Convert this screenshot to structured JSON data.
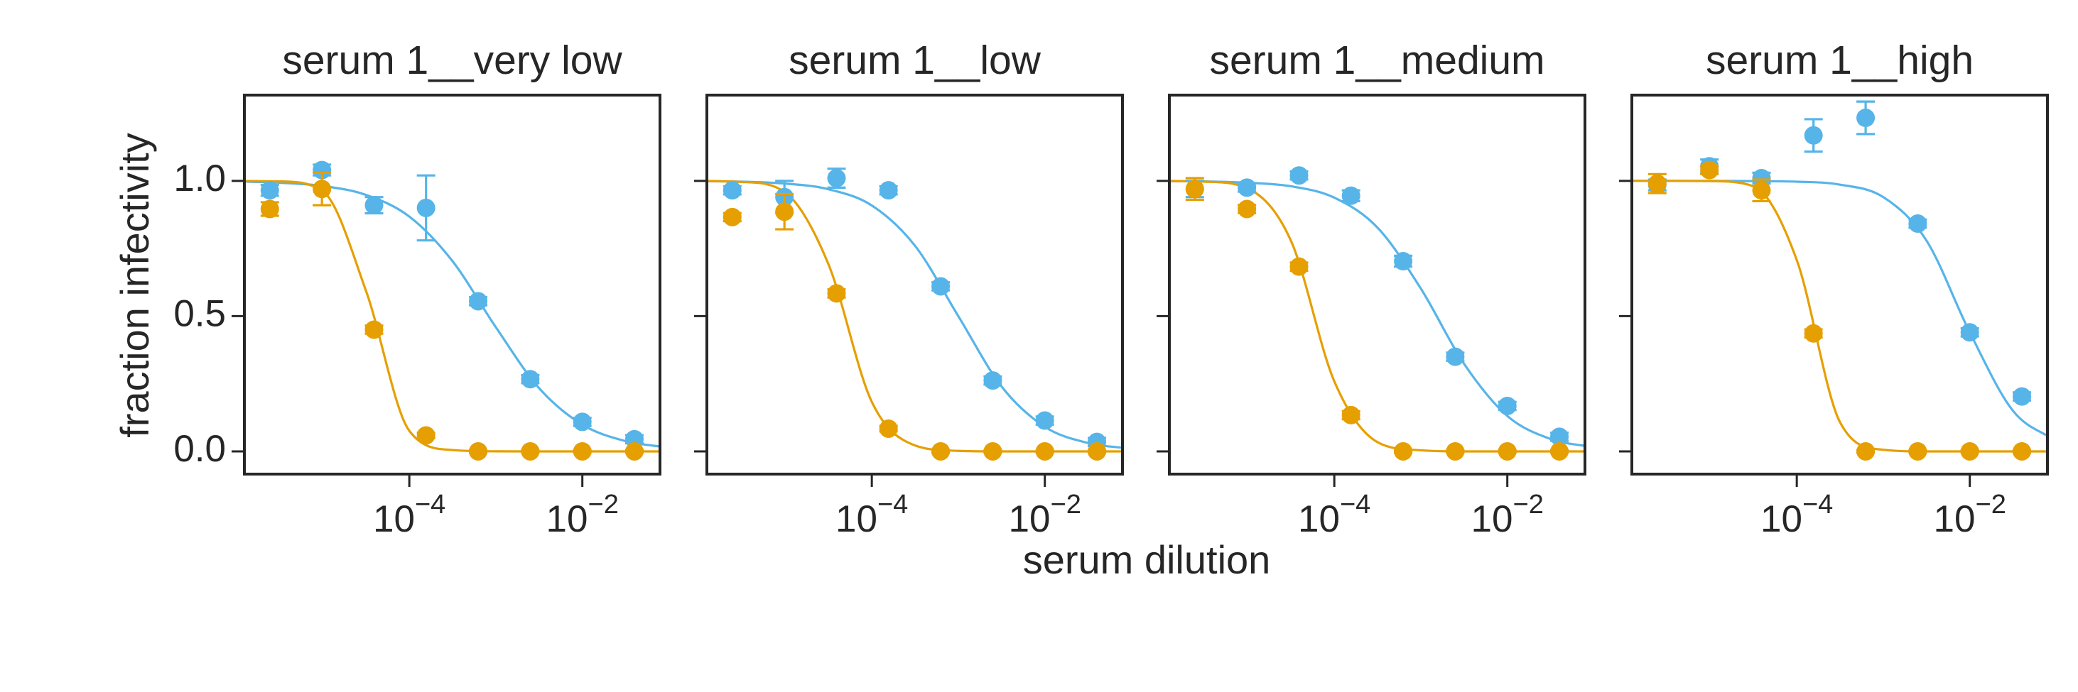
{
  "xlabel": "serum dilution",
  "ylabel": "fraction infectivity",
  "chart_data": [
    {
      "type": "scatter",
      "title": "serum 1__very low",
      "xscale": "log",
      "x": [
        2.44e-06,
        9.77e-06,
        3.91e-05,
        0.000156,
        0.000625,
        0.0025,
        0.01,
        0.04
      ],
      "xlim": [
        1.24e-06,
        0.079
      ],
      "xticks": [
        {
          "value": 0.0001,
          "label": {
            "base": "10",
            "exponent": "−4"
          }
        },
        {
          "value": 0.01,
          "label": {
            "base": "10",
            "exponent": "−2"
          }
        }
      ],
      "ylim": [
        -0.084,
        1.317
      ],
      "yticks": [
        {
          "value": 0,
          "label": "0.0"
        },
        0.5,
        {
          "value": 1,
          "label": "1.0"
        }
      ],
      "yticklabels": true,
      "series": [
        {
          "color": "#56b4e9",
          "values": [
            0.965,
            1.04,
            0.91,
            0.9,
            0.555,
            0.267,
            0.109,
            0.045
          ],
          "errors": [
            0.02,
            0.02,
            0.03,
            0.12,
            0.015,
            0.015,
            0.015,
            0.015
          ]
        },
        {
          "color": "#e69f00",
          "values": [
            0.896,
            0.97,
            0.45,
            0.059,
            0,
            0,
            0,
            0
          ],
          "errors": [
            0.025,
            0.06,
            0.015,
            0.01,
            0.005,
            0.005,
            0.005,
            0.005
          ]
        }
      ],
      "fit_x": [
        1e-06,
        3.16e-06,
        1e-05,
        3.16e-05,
        0.0001,
        0.000316,
        0.001,
        0.00316,
        0.01,
        0.0316,
        0.1
      ],
      "fits": [
        {
          "type": "line",
          "color": "#56b4e9",
          "values": [
            0.998,
            0.993,
            0.981,
            0.948,
            0.868,
            0.703,
            0.459,
            0.234,
            0.099,
            0.038,
            0.014
          ]
        },
        {
          "type": "line",
          "color": "#e69f00",
          "values": [
            1.0,
            0.998,
            0.962,
            0.593,
            0.076,
            0.005,
            0.0003,
            0,
            0,
            0,
            0
          ]
        }
      ]
    },
    {
      "type": "scatter",
      "title": "serum 1__low",
      "xscale": "log",
      "x": [
        2.44e-06,
        9.77e-06,
        3.91e-05,
        0.000156,
        0.000625,
        0.0025,
        0.01,
        0.04
      ],
      "xlim": [
        1.24e-06,
        0.079
      ],
      "xticks": [
        {
          "value": 0.0001,
          "label": {
            "base": "10",
            "exponent": "−4"
          }
        },
        {
          "value": 0.01,
          "label": {
            "base": "10",
            "exponent": "−2"
          }
        }
      ],
      "ylim": [
        -0.084,
        1.317
      ],
      "yticks": [
        0,
        0.5,
        1
      ],
      "yticklabels": false,
      "series": [
        {
          "color": "#56b4e9",
          "values": [
            0.965,
            0.94,
            1.01,
            0.965,
            0.61,
            0.262,
            0.114,
            0.035
          ],
          "errors": [
            0.015,
            0.06,
            0.035,
            0.015,
            0.015,
            0.015,
            0.015,
            0.015
          ]
        },
        {
          "color": "#e69f00",
          "values": [
            0.866,
            0.886,
            0.584,
            0.084,
            0,
            0,
            0,
            0
          ],
          "errors": [
            0.015,
            0.065,
            0.015,
            0.01,
            0.005,
            0.005,
            0.005,
            0.005
          ]
        }
      ],
      "fit_x": [
        1e-06,
        3.16e-06,
        1e-05,
        3.16e-05,
        0.0001,
        0.000316,
        0.001,
        0.00316,
        0.01,
        0.0316,
        0.1
      ],
      "fits": [
        {
          "type": "line",
          "color": "#56b4e9",
          "values": [
            0.999,
            0.997,
            0.99,
            0.969,
            0.909,
            0.76,
            0.5,
            0.24,
            0.091,
            0.031,
            0.01
          ]
        },
        {
          "type": "line",
          "color": "#e69f00",
          "values": [
            1.0,
            0.996,
            0.957,
            0.691,
            0.183,
            0.022,
            0.002,
            0,
            0,
            0,
            0
          ]
        }
      ]
    },
    {
      "type": "scatter",
      "title": "serum 1__medium",
      "xscale": "log",
      "x": [
        2.44e-06,
        9.77e-06,
        3.91e-05,
        0.000156,
        0.000625,
        0.0025,
        0.01,
        0.04
      ],
      "xlim": [
        1.24e-06,
        0.079
      ],
      "xticks": [
        {
          "value": 0.0001,
          "label": {
            "base": "10",
            "exponent": "−4"
          }
        },
        {
          "value": 0.01,
          "label": {
            "base": "10",
            "exponent": "−2"
          }
        }
      ],
      "ylim": [
        -0.084,
        1.317
      ],
      "yticks": [
        0,
        0.5,
        1
      ],
      "yticklabels": false,
      "series": [
        {
          "color": "#56b4e9",
          "values": [
            0.97,
            0.975,
            1.02,
            0.945,
            0.703,
            0.35,
            0.168,
            0.054
          ],
          "errors": [
            0.03,
            0.015,
            0.015,
            0.02,
            0.02,
            0.015,
            0.015,
            0.015
          ]
        },
        {
          "color": "#e69f00",
          "values": [
            0.97,
            0.896,
            0.683,
            0.134,
            0,
            0,
            0,
            0
          ],
          "errors": [
            0.04,
            0.015,
            0.015,
            0.015,
            0.005,
            0.005,
            0.005,
            0.005
          ]
        }
      ],
      "fit_x": [
        1e-06,
        3.16e-06,
        1e-05,
        3.16e-05,
        0.0001,
        0.000316,
        0.001,
        0.00316,
        0.01,
        0.0316,
        0.1
      ],
      "fits": [
        {
          "type": "line",
          "color": "#56b4e9",
          "values": [
            0.999,
            0.998,
            0.993,
            0.98,
            0.938,
            0.827,
            0.602,
            0.324,
            0.131,
            0.046,
            0.015
          ]
        },
        {
          "type": "line",
          "color": "#e69f00",
          "values": [
            1.0,
            0.997,
            0.972,
            0.778,
            0.259,
            0.034,
            0.004,
            0,
            0,
            0,
            0
          ]
        }
      ]
    },
    {
      "type": "scatter",
      "title": "serum 1__high",
      "xscale": "log",
      "x": [
        2.44e-06,
        9.77e-06,
        3.91e-05,
        0.000156,
        0.000625,
        0.0025,
        0.01,
        0.04
      ],
      "xlim": [
        1.24e-06,
        0.079
      ],
      "xticks": [
        {
          "value": 0.0001,
          "label": {
            "base": "10",
            "exponent": "−4"
          }
        },
        {
          "value": 0.01,
          "label": {
            "base": "10",
            "exponent": "−2"
          }
        }
      ],
      "ylim": [
        -0.084,
        1.317
      ],
      "yticks": [
        0,
        0.5,
        1
      ],
      "yticklabels": false,
      "series": [
        {
          "color": "#56b4e9",
          "values": [
            0.985,
            1.054,
            1.01,
            1.168,
            1.233,
            0.842,
            0.44,
            0.203
          ],
          "errors": [
            0.02,
            0.025,
            0.02,
            0.06,
            0.06,
            0.015,
            0.015,
            0.015
          ]
        },
        {
          "color": "#e69f00",
          "values": [
            0.99,
            1.04,
            0.965,
            0.436,
            0,
            0,
            0,
            0
          ],
          "errors": [
            0.035,
            0.015,
            0.04,
            0.015,
            0.005,
            0.005,
            0.005,
            0.005
          ]
        }
      ],
      "fit_x": [
        1e-06,
        3.16e-06,
        1e-05,
        3.16e-05,
        0.0001,
        0.000316,
        0.001,
        0.00316,
        0.01,
        0.0316,
        0.1
      ],
      "fits": [
        {
          "type": "line",
          "color": "#56b4e9",
          "values": [
            1.0,
            1.0,
            1.0,
            0.999,
            0.997,
            0.986,
            0.94,
            0.779,
            0.44,
            0.15,
            0.038
          ]
        },
        {
          "type": "line",
          "color": "#e69f00",
          "values": [
            1.0,
            1.0,
            0.999,
            0.98,
            0.707,
            0.108,
            0.006,
            0,
            0,
            0,
            0
          ]
        }
      ]
    }
  ]
}
